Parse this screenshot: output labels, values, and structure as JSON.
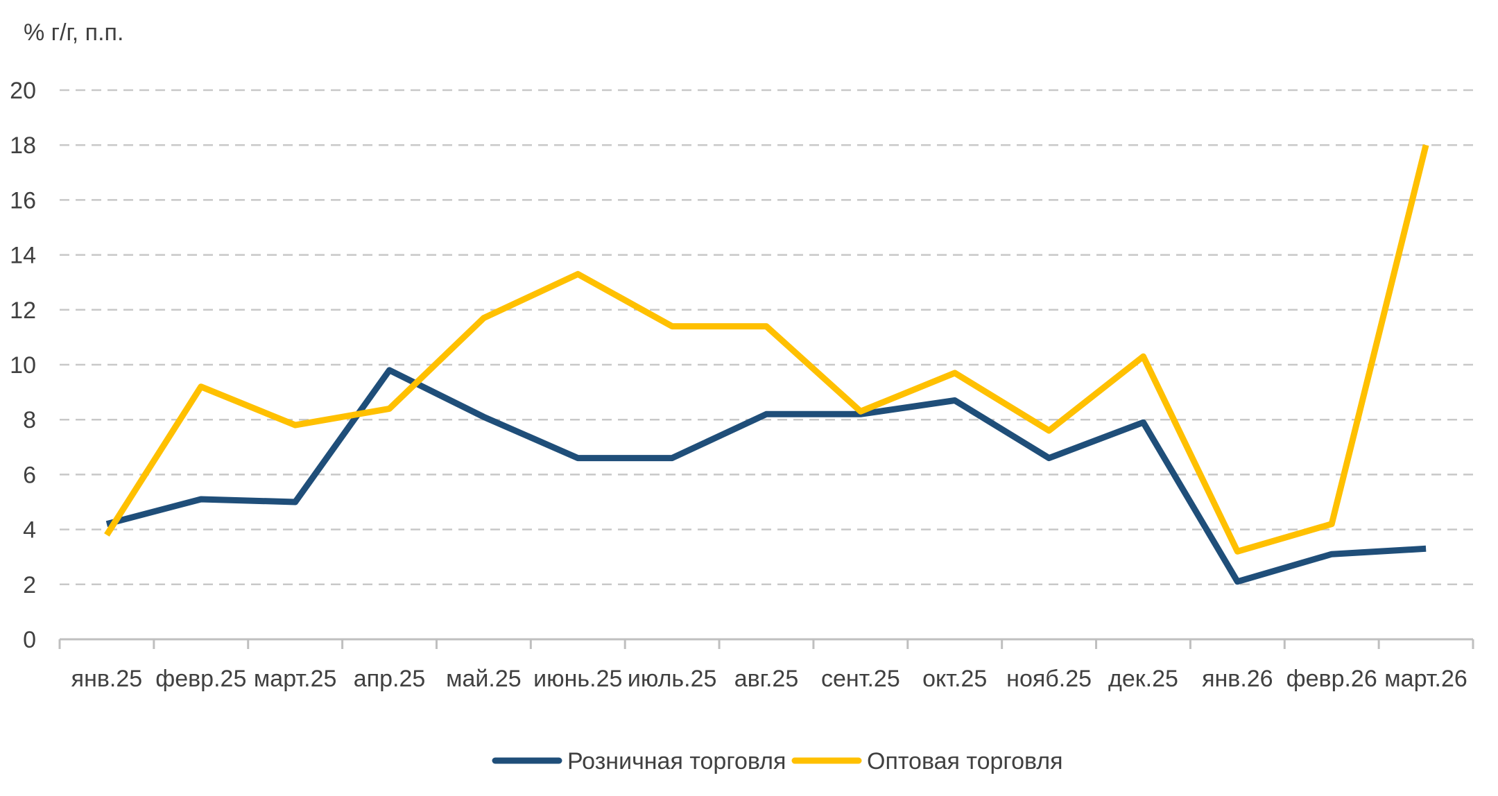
{
  "chart_data": {
    "type": "line",
    "ylabel": "% г/г, п.п.",
    "xlabel": "",
    "ylim": [
      0,
      20
    ],
    "yticks": [
      0,
      2,
      4,
      6,
      8,
      10,
      12,
      14,
      16,
      18,
      20
    ],
    "grid": "horizontal dashed",
    "legend_position": "bottom-center",
    "categories": [
      "янв.25",
      "февр.25",
      "март.25",
      "апр.25",
      "май.25",
      "июнь.25",
      "июль.25",
      "авг.25",
      "сент.25",
      "окт.25",
      "нояб.25",
      "дек.25",
      "янв.26",
      "февр.26",
      "март.26"
    ],
    "series": [
      {
        "name": "Розничная торговля",
        "color": "#1f4e79",
        "values": [
          4.2,
          5.1,
          5.0,
          9.8,
          8.1,
          6.6,
          6.6,
          8.2,
          8.2,
          8.7,
          6.6,
          7.9,
          2.1,
          3.1,
          3.3
        ]
      },
      {
        "name": "Оптовая торговля",
        "color": "#ffc000",
        "values": [
          3.8,
          9.2,
          7.8,
          8.4,
          11.7,
          13.3,
          11.4,
          11.4,
          8.3,
          9.7,
          7.6,
          10.3,
          3.2,
          4.2,
          18.0
        ]
      }
    ]
  }
}
